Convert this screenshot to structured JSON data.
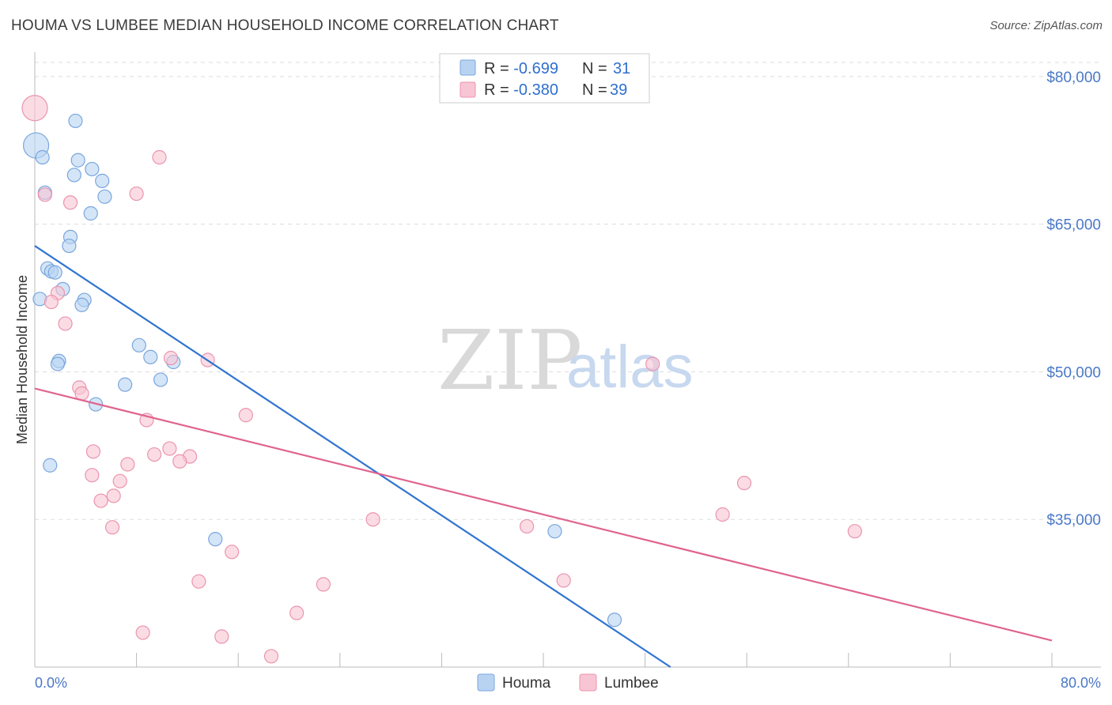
{
  "header": {
    "title": "HOUMA VS LUMBEE MEDIAN HOUSEHOLD INCOME CORRELATION CHART",
    "source": "Source: ZipAtlas.com"
  },
  "watermark": {
    "zip": "ZIP",
    "atlas": "atlas"
  },
  "colors": {
    "houma_fill": "#b8d3f2",
    "houma_stroke": "#7aa6dd",
    "houma_line": "#2f74d0",
    "lumbee_fill": "#f8c5d4",
    "lumbee_stroke": "#eb94ae",
    "lumbee_line": "#e0648e",
    "value_text": "#2f6fcf",
    "grid": "#dddddd"
  },
  "legend": {
    "r_label": "R = ",
    "n_label": "N = ",
    "rows": [
      {
        "name": "Houma",
        "r": "-0.699",
        "n": "31"
      },
      {
        "name": "Lumbee",
        "r": "-0.380",
        "n": "39"
      }
    ]
  },
  "chart_data": {
    "type": "scatter",
    "title": "HOUMA VS LUMBEE MEDIAN HOUSEHOLD INCOME CORRELATION CHART",
    "xlabel": "",
    "ylabel": "Median Household Income",
    "xlim": [
      0,
      80
    ],
    "ylim": [
      20000,
      82000
    ],
    "x_tick_labels": [
      "0.0%",
      "80.0%"
    ],
    "y_ticks": [
      35000,
      50000,
      65000,
      80000
    ],
    "y_tick_labels": [
      "$35,000",
      "$50,000",
      "$65,000",
      "$80,000"
    ],
    "grid": true,
    "legend_position": "top-center",
    "series": [
      {
        "name": "Houma",
        "trend": {
          "x0": 0.0,
          "y0": 62800,
          "x1": 50.0,
          "y1": 20000
        },
        "points": [
          {
            "x": 0.1,
            "y": 73000,
            "r": 16
          },
          {
            "x": 0.6,
            "y": 71800
          },
          {
            "x": 3.2,
            "y": 75500
          },
          {
            "x": 3.4,
            "y": 71500
          },
          {
            "x": 4.5,
            "y": 70600
          },
          {
            "x": 3.1,
            "y": 70000
          },
          {
            "x": 5.3,
            "y": 69400
          },
          {
            "x": 0.8,
            "y": 68200
          },
          {
            "x": 5.5,
            "y": 67800
          },
          {
            "x": 4.4,
            "y": 66100
          },
          {
            "x": 2.8,
            "y": 63700
          },
          {
            "x": 2.7,
            "y": 62800
          },
          {
            "x": 1.0,
            "y": 60500
          },
          {
            "x": 1.3,
            "y": 60200
          },
          {
            "x": 1.6,
            "y": 60100
          },
          {
            "x": 2.2,
            "y": 58400
          },
          {
            "x": 0.4,
            "y": 57400
          },
          {
            "x": 3.9,
            "y": 57300
          },
          {
            "x": 3.7,
            "y": 56800
          },
          {
            "x": 8.2,
            "y": 52700
          },
          {
            "x": 9.1,
            "y": 51500
          },
          {
            "x": 1.9,
            "y": 51100
          },
          {
            "x": 1.8,
            "y": 50800
          },
          {
            "x": 10.9,
            "y": 51000
          },
          {
            "x": 9.9,
            "y": 49200
          },
          {
            "x": 7.1,
            "y": 48700
          },
          {
            "x": 4.8,
            "y": 46700
          },
          {
            "x": 1.2,
            "y": 40500
          },
          {
            "x": 14.2,
            "y": 33000
          },
          {
            "x": 40.9,
            "y": 33800
          },
          {
            "x": 45.6,
            "y": 24800
          }
        ]
      },
      {
        "name": "Lumbee",
        "trend": {
          "x0": 0.0,
          "y0": 48300,
          "x1": 80.0,
          "y1": 22700
        },
        "points": [
          {
            "x": 0.0,
            "y": 76800,
            "r": 16
          },
          {
            "x": 9.8,
            "y": 71800
          },
          {
            "x": 0.8,
            "y": 68000
          },
          {
            "x": 8.0,
            "y": 68100
          },
          {
            "x": 2.8,
            "y": 67200
          },
          {
            "x": 1.8,
            "y": 58000
          },
          {
            "x": 1.3,
            "y": 57100
          },
          {
            "x": 2.4,
            "y": 54900
          },
          {
            "x": 10.7,
            "y": 51400
          },
          {
            "x": 13.6,
            "y": 51200
          },
          {
            "x": 48.6,
            "y": 50800
          },
          {
            "x": 3.5,
            "y": 48400
          },
          {
            "x": 3.7,
            "y": 47800
          },
          {
            "x": 16.6,
            "y": 45600
          },
          {
            "x": 8.8,
            "y": 45100
          },
          {
            "x": 10.6,
            "y": 42200
          },
          {
            "x": 4.6,
            "y": 41900
          },
          {
            "x": 9.4,
            "y": 41600
          },
          {
            "x": 12.2,
            "y": 41400
          },
          {
            "x": 11.4,
            "y": 40900
          },
          {
            "x": 7.3,
            "y": 40600
          },
          {
            "x": 4.5,
            "y": 39500
          },
          {
            "x": 6.7,
            "y": 38900
          },
          {
            "x": 55.8,
            "y": 38700
          },
          {
            "x": 6.2,
            "y": 37400
          },
          {
            "x": 5.2,
            "y": 36900
          },
          {
            "x": 54.1,
            "y": 35500
          },
          {
            "x": 26.6,
            "y": 35000
          },
          {
            "x": 6.1,
            "y": 34200
          },
          {
            "x": 38.7,
            "y": 34300
          },
          {
            "x": 64.5,
            "y": 33800
          },
          {
            "x": 15.5,
            "y": 31700
          },
          {
            "x": 12.9,
            "y": 28700
          },
          {
            "x": 22.7,
            "y": 28400
          },
          {
            "x": 41.6,
            "y": 28800
          },
          {
            "x": 20.6,
            "y": 25500
          },
          {
            "x": 8.5,
            "y": 23500
          },
          {
            "x": 14.7,
            "y": 23100
          },
          {
            "x": 18.6,
            "y": 21100
          }
        ]
      }
    ]
  }
}
